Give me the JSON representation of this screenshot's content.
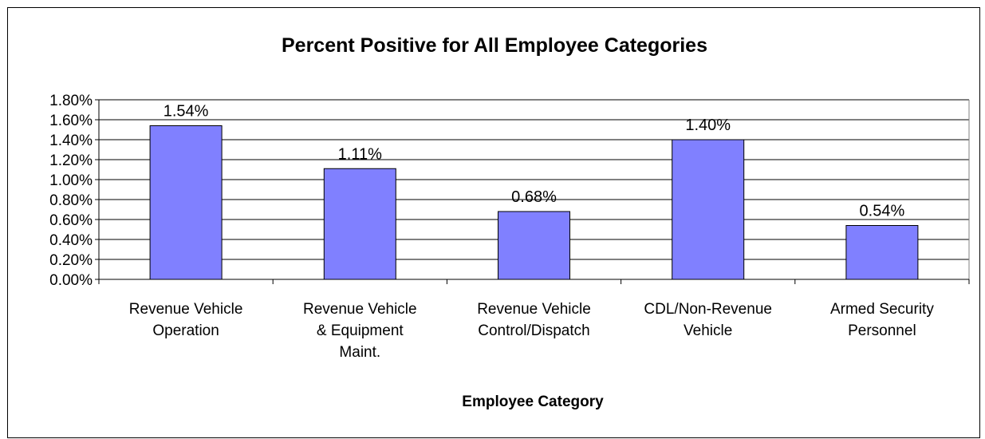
{
  "chart_data": {
    "type": "bar",
    "title": "Percent Positive for All Employee Categories",
    "xlabel": "Employee Category",
    "ylabel": "",
    "categories": [
      [
        "Revenue Vehicle",
        "Operation"
      ],
      [
        "Revenue Vehicle",
        "& Equipment",
        "Maint."
      ],
      [
        "Revenue Vehicle",
        "Control/Dispatch"
      ],
      [
        "CDL/Non-Revenue",
        "Vehicle"
      ],
      [
        "Armed Security",
        "Personnel"
      ]
    ],
    "values": [
      1.54,
      1.11,
      0.68,
      1.4,
      0.54
    ],
    "data_labels": [
      "1.54%",
      "1.11%",
      "0.68%",
      "1.40%",
      "0.54%"
    ],
    "ylim": [
      0,
      1.8
    ],
    "y_ticks": [
      0,
      0.2,
      0.4,
      0.6,
      0.8,
      1.0,
      1.2,
      1.4,
      1.6,
      1.8
    ],
    "y_tick_labels": [
      "0.00%",
      "0.20%",
      "0.40%",
      "0.60%",
      "0.80%",
      "1.00%",
      "1.20%",
      "1.40%",
      "1.60%",
      "1.80%"
    ],
    "grid": true,
    "legend": "none",
    "bar_color": "#8080FF",
    "bar_edge_color": "#000000",
    "gridline_color": "#000000"
  }
}
